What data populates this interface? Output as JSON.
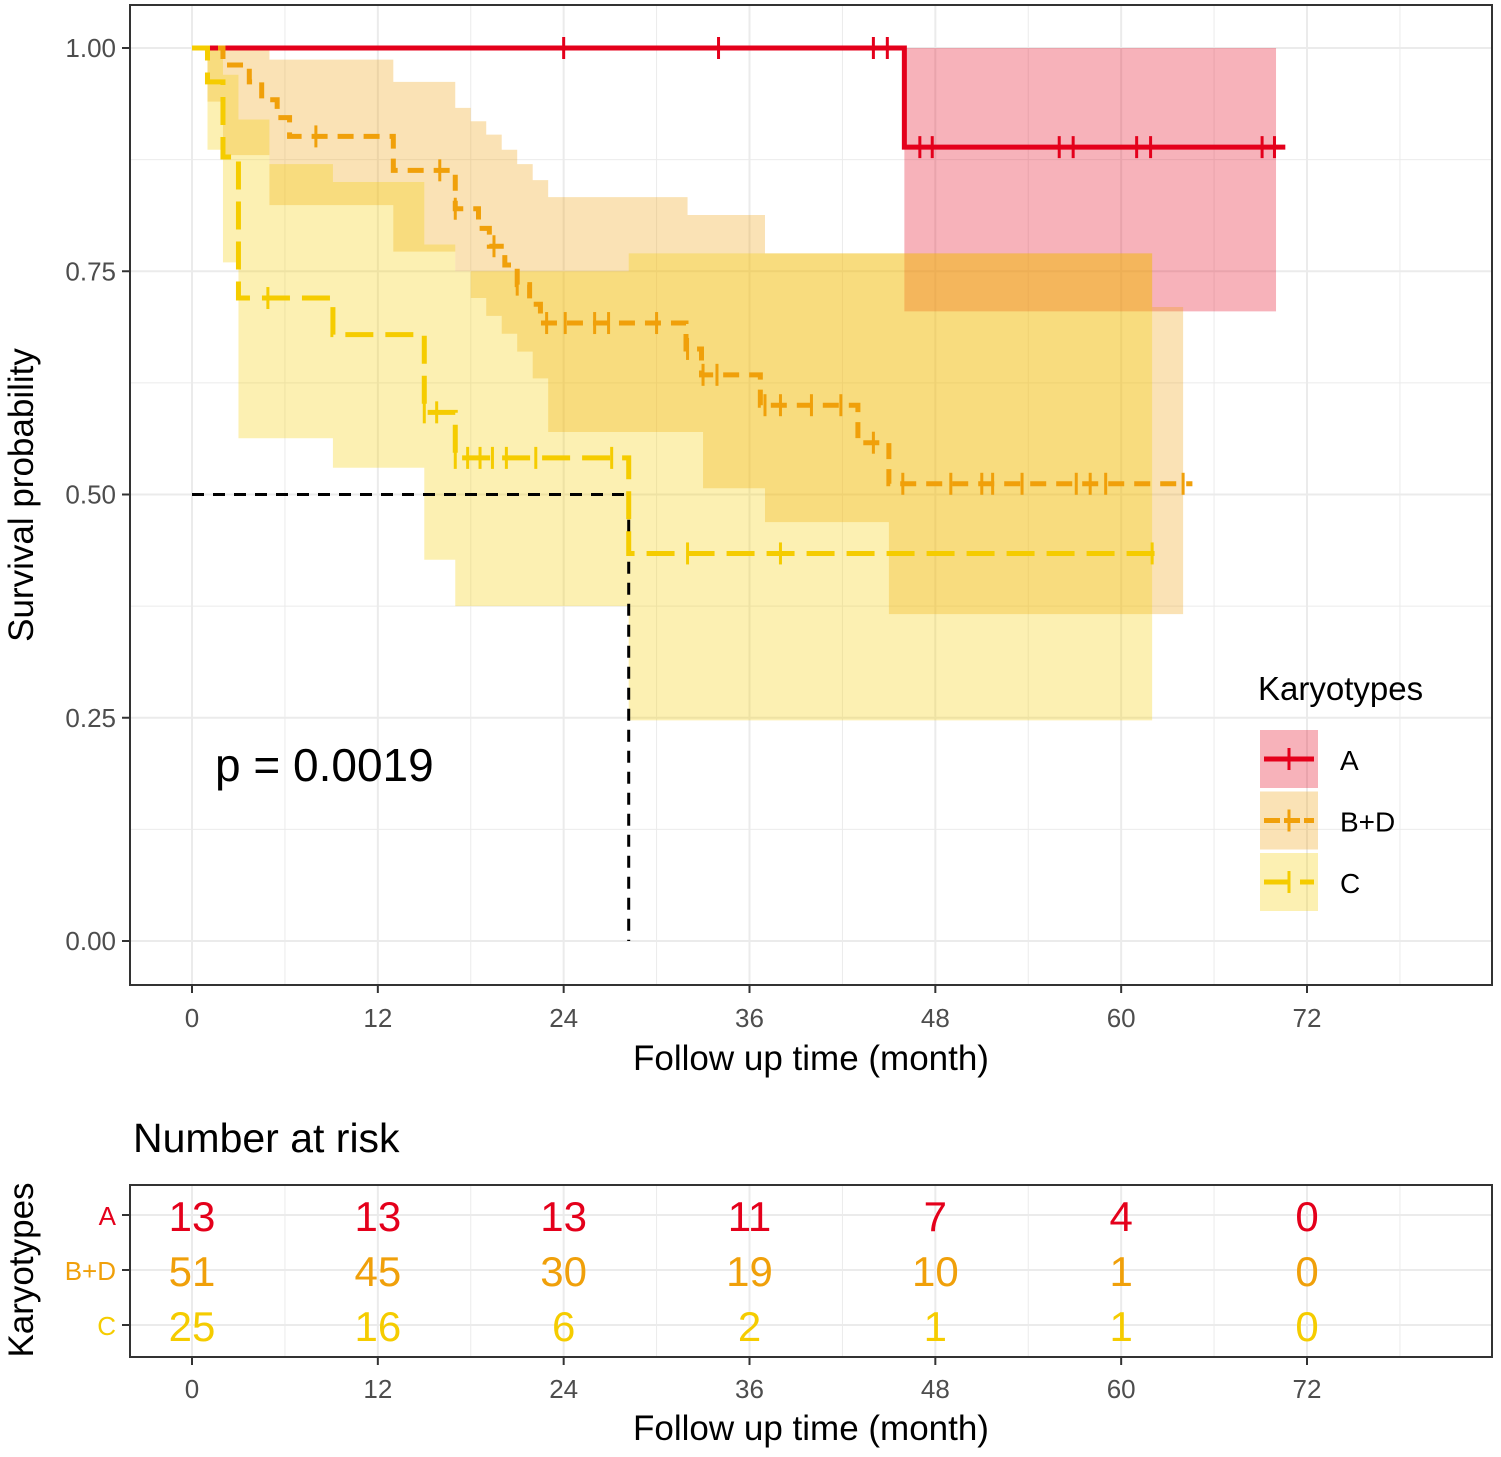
{
  "chart_data": [
    {
      "type": "line",
      "subtype": "kaplan-meier",
      "xlabel": "Follow up time (month)",
      "ylabel": "Survival probability",
      "xlim": [
        -4,
        84
      ],
      "ylim": [
        -0.05,
        1.05
      ],
      "xticks": [
        "0",
        "12",
        "24",
        "36",
        "48",
        "60",
        "72"
      ],
      "yticks": [
        "0.00",
        "0.25",
        "0.50",
        "0.75",
        "1.00"
      ],
      "grid": true,
      "annotation": "p = 0.0019",
      "median_line": {
        "time": 28.2,
        "survival": 0.5
      },
      "legend": {
        "title": "Karyotypes",
        "position": "right",
        "labels": [
          "A",
          "B+D",
          "C"
        ]
      },
      "series": [
        {
          "name": "A",
          "color": "#E4001B",
          "linetype": "solid",
          "steps": [
            [
              0,
              1
            ],
            [
              46,
              0.889
            ]
          ],
          "end": 70.6,
          "censor": [
            24,
            34,
            44,
            44.9,
            47,
            47.8,
            56,
            56.9,
            61,
            61.9,
            69.1,
            69.9
          ],
          "ci": [
            [
              46,
              0.705,
              1
            ]
          ],
          "ci_end": 70.0
        },
        {
          "name": "B+D",
          "color": "#F0A00A",
          "linetype": "dashed",
          "steps": [
            [
              0,
              1
            ],
            [
              2,
              0.981
            ],
            [
              3.7,
              0.962
            ],
            [
              4.5,
              0.942
            ],
            [
              5.5,
              0.922
            ],
            [
              6.3,
              0.901
            ],
            [
              13,
              0.863
            ],
            [
              17,
              0.82
            ],
            [
              18.5,
              0.798
            ],
            [
              19.2,
              0.778
            ],
            [
              20.2,
              0.757
            ],
            [
              21,
              0.735
            ],
            [
              21.8,
              0.713
            ],
            [
              22.5,
              0.692
            ],
            [
              31.9,
              0.663
            ],
            [
              32.9,
              0.634
            ],
            [
              36.7,
              0.6
            ],
            [
              43,
              0.558
            ],
            [
              45,
              0.512
            ]
          ],
          "end": 64.6,
          "censor": [
            8,
            16,
            17,
            19.5,
            21,
            22.9,
            24.1,
            26,
            26.9,
            30,
            32,
            33,
            33.9,
            37,
            38,
            40,
            41.9,
            44,
            45.9,
            49,
            51,
            51.7,
            53.6,
            57.1,
            58,
            59,
            64
          ],
          "ci": [
            [
              1,
              0.94,
              1
            ],
            [
              2,
              0.88,
              1
            ],
            [
              5,
              0.824,
              0.987
            ],
            [
              13,
              0.772,
              0.962
            ],
            [
              17,
              0.75,
              0.933
            ],
            [
              18,
              0.72,
              0.918
            ],
            [
              19,
              0.7,
              0.903
            ],
            [
              20,
              0.68,
              0.886
            ],
            [
              21,
              0.66,
              0.87
            ],
            [
              22,
              0.63,
              0.852
            ],
            [
              23,
              0.57,
              0.833
            ],
            [
              32,
              0.57,
              0.813
            ],
            [
              33,
              0.507,
              0.813
            ],
            [
              37,
              0.469,
              0.77
            ],
            [
              45,
              0.366,
              0.77
            ],
            [
              62,
              0.366,
              0.71
            ]
          ],
          "ci_end": 64
        },
        {
          "name": "C",
          "color": "#F5CC00",
          "linetype": "longdash",
          "steps": [
            [
              0,
              1
            ],
            [
              1,
              0.962
            ],
            [
              2,
              0.878
            ],
            [
              3,
              0.72
            ],
            [
              9.1,
              0.679
            ],
            [
              15,
              0.592
            ],
            [
              17,
              0.541
            ],
            [
              28.2,
              0.434
            ]
          ],
          "end": 62.5,
          "censor": [
            4.9,
            15,
            15.8,
            17,
            17.8,
            18.6,
            19.4,
            20.3,
            22.2,
            27.1,
            32,
            38,
            62
          ],
          "ci": [
            [
              1,
              0.886,
              1
            ],
            [
              2,
              0.76,
              0.97
            ],
            [
              3,
              0.563,
              0.92
            ],
            [
              5,
              0.563,
              0.87
            ],
            [
              9.1,
              0.53,
              0.85
            ],
            [
              15,
              0.427,
              0.78
            ],
            [
              17,
              0.375,
              0.75
            ],
            [
              28.2,
              0.247,
              0.77
            ]
          ],
          "ci_end": 62
        }
      ]
    },
    {
      "type": "table",
      "title": "Number at risk",
      "xlabel": "Follow up time (month)",
      "ylabel": "Karyotypes",
      "xticks": [
        "0",
        "12",
        "24",
        "36",
        "48",
        "60",
        "72"
      ],
      "times": [
        0,
        12,
        24,
        36,
        48,
        60,
        72
      ],
      "rows": [
        {
          "name": "A",
          "color": "#E4001B",
          "values": [
            "13",
            "13",
            "13",
            "11",
            "7",
            "4",
            "0"
          ]
        },
        {
          "name": "B+D",
          "color": "#F0A00A",
          "values": [
            "51",
            "45",
            "30",
            "19",
            "10",
            "1",
            "0"
          ]
        },
        {
          "name": "C",
          "color": "#F5CC00",
          "values": [
            "25",
            "16",
            "6",
            "2",
            "1",
            "1",
            "0"
          ]
        }
      ]
    }
  ]
}
